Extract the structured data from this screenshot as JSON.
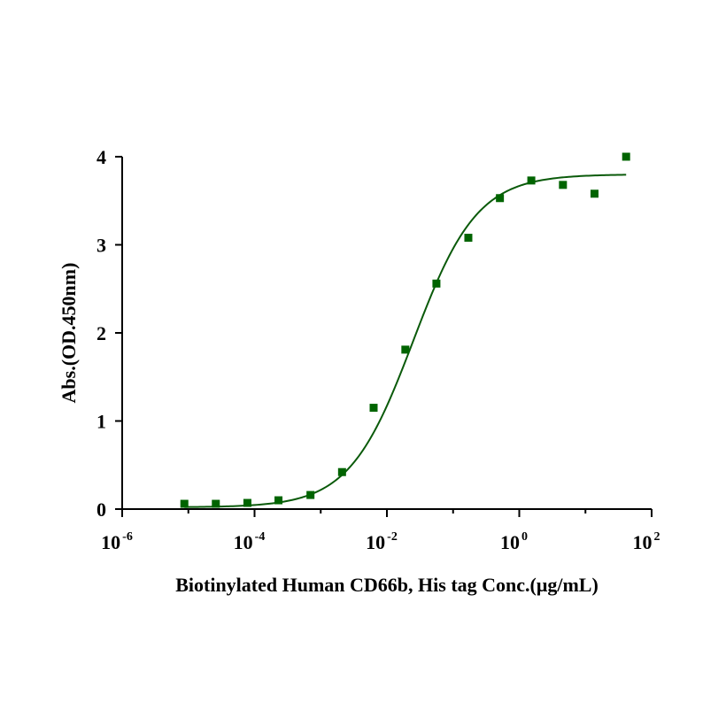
{
  "chart_data": {
    "type": "scatter",
    "xlabel": "Biotinylated Human CD66b, His tag Conc.(μg/mL)",
    "ylabel": "Abs.(OD.450nm)",
    "x_scale": "log10",
    "xlim": [
      1e-06,
      100
    ],
    "ylim": [
      0,
      4
    ],
    "x_ticks": [
      {
        "base": "10",
        "exp": "-6",
        "value": 1e-06
      },
      {
        "base": "10",
        "exp": "-4",
        "value": 0.0001
      },
      {
        "base": "10",
        "exp": "-2",
        "value": 0.01
      },
      {
        "base": "10",
        "exp": "0",
        "value": 1
      },
      {
        "base": "10",
        "exp": "2",
        "value": 100
      }
    ],
    "y_ticks": [
      "0",
      "1",
      "2",
      "3",
      "4"
    ],
    "grid": false,
    "colors": {
      "series": "#006400",
      "curve": "#0a5a0a",
      "axis": "#000000"
    },
    "series": [
      {
        "marker": "square",
        "x": [
          8.7e-06,
          2.6e-05,
          7.8e-05,
          0.00023,
          0.0007,
          0.0021,
          0.0063,
          0.019,
          0.056,
          0.17,
          0.51,
          1.52,
          4.57,
          13.7,
          41.2
        ],
        "y": [
          0.06,
          0.06,
          0.07,
          0.1,
          0.16,
          0.42,
          1.15,
          1.81,
          2.56,
          3.08,
          3.53,
          3.73,
          3.68,
          3.58,
          4.0
        ]
      }
    ],
    "fit_curve": {
      "type": "4PL sigmoid",
      "bottom": 0.02,
      "top": 3.8,
      "ec50": 0.025,
      "hill": 0.9
    }
  }
}
